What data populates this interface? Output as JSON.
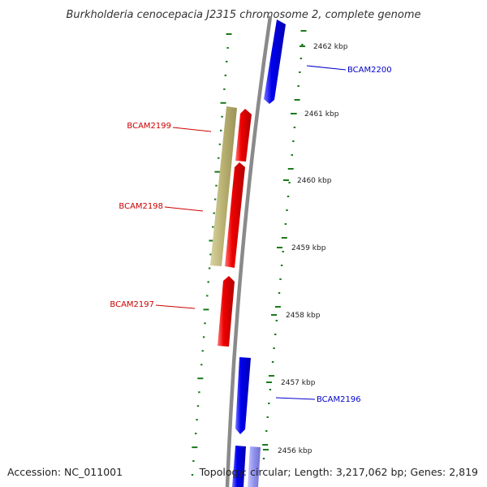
{
  "title": "Burkholderia cenocepacia J2315 chromosome 2, complete genome",
  "footer": {
    "accession": "Accession: NC_011001",
    "summary": "Topology: circular; Length: 3,217,062 bp; Genes: 2,819"
  },
  "colors": {
    "forward_cds": "#0000ee",
    "reverse_cds": "#ee0000",
    "gc_ring": "#b8b070",
    "backbone": "#8a8a8a",
    "tick": "#1a7a1a",
    "forward_label": "#0000cc",
    "reverse_label": "#cc0000"
  },
  "scale": {
    "unit": "kbp",
    "ticks": [
      "2462 kbp",
      "2461 kbp",
      "2460 kbp",
      "2459 kbp",
      "2458 kbp",
      "2457 kbp",
      "2456 kbp"
    ]
  },
  "genes": [
    {
      "id": "BCAM2200",
      "strand": "forward"
    },
    {
      "id": "BCAM2199",
      "strand": "reverse"
    },
    {
      "id": "BCAM2198",
      "strand": "reverse"
    },
    {
      "id": "BCAM2197",
      "strand": "reverse"
    },
    {
      "id": "BCAM2196",
      "strand": "forward"
    }
  ]
}
